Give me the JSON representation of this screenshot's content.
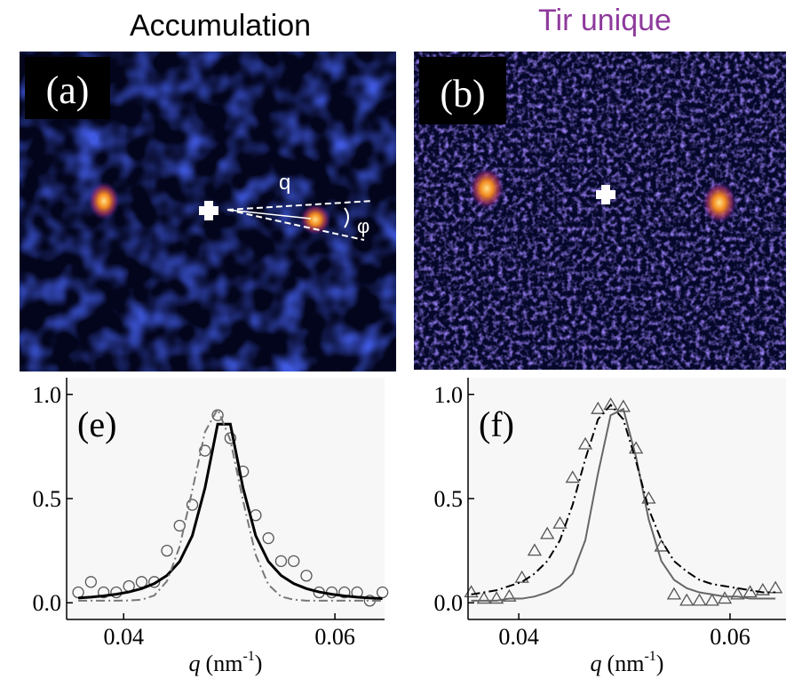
{
  "headers": [
    "Accumulation",
    "Tir unique"
  ],
  "images": [
    {
      "label": "(a)",
      "annotations": [
        "q",
        "φ"
      ]
    },
    {
      "label": "(b)"
    }
  ],
  "chart_data": [
    {
      "type": "line",
      "panel_label": "(e)",
      "x_label": {
        "symbol": "q",
        "unit": "(nm",
        "exponent": "-1",
        "close": ")"
      },
      "x": [
        0.0357,
        0.0369,
        0.0381,
        0.0393,
        0.0405,
        0.0417,
        0.0429,
        0.0441,
        0.0453,
        0.0465,
        0.0477,
        0.0489,
        0.0501,
        0.0513,
        0.0525,
        0.0537,
        0.0549,
        0.0561,
        0.0573,
        0.0585,
        0.0597,
        0.0609,
        0.0621,
        0.0633,
        0.0645
      ],
      "series": [
        {
          "style": "circles",
          "color": "#555555",
          "values": [
            0.05,
            0.1,
            0.05,
            0.05,
            0.08,
            0.1,
            0.1,
            0.25,
            0.37,
            0.47,
            0.73,
            0.9,
            0.79,
            0.63,
            0.42,
            0.31,
            0.2,
            0.2,
            0.13,
            0.05,
            0.05,
            0.05,
            0.05,
            0.01,
            0.05
          ]
        },
        {
          "style": "solid",
          "color": "#000000",
          "values": [
            0.023,
            0.027,
            0.033,
            0.041,
            0.052,
            0.068,
            0.092,
            0.131,
            0.198,
            0.322,
            0.551,
            0.857,
            0.857,
            0.551,
            0.322,
            0.198,
            0.131,
            0.092,
            0.068,
            0.052,
            0.041,
            0.033,
            0.027,
            0.023,
            0.02
          ]
        },
        {
          "style": "dashdot",
          "color": "#777777",
          "values": [
            0.01,
            0.01,
            0.01,
            0.01,
            0.011,
            0.015,
            0.035,
            0.104,
            0.27,
            0.54,
            0.82,
            0.93,
            0.78,
            0.49,
            0.23,
            0.087,
            0.03,
            0.015,
            0.01,
            0.01,
            0.01,
            0.01,
            0.01,
            0.01,
            0.01
          ]
        }
      ],
      "xlim": [
        0.0346,
        0.0647
      ],
      "ylim": [
        -0.08,
        1.08
      ],
      "xticks": [
        0.04,
        0.06
      ],
      "yticks": [
        {
          "value": 0,
          "label": "0.0"
        },
        {
          "value": 0.5,
          "label": "0.5"
        },
        {
          "value": 1,
          "label": "1.0"
        }
      ]
    },
    {
      "type": "line",
      "panel_label": "(f)",
      "x_label": {
        "symbol": "q",
        "unit": "(nm",
        "exponent": "-1",
        "close": ")"
      },
      "x": [
        0.0355,
        0.0367,
        0.0379,
        0.0391,
        0.0403,
        0.0415,
        0.0427,
        0.0439,
        0.0451,
        0.0463,
        0.0475,
        0.0487,
        0.0499,
        0.0511,
        0.0523,
        0.0535,
        0.0547,
        0.0559,
        0.0571,
        0.0583,
        0.0595,
        0.0607,
        0.0619,
        0.0631,
        0.0643
      ],
      "series": [
        {
          "style": "triangles",
          "color": "#555555",
          "values": [
            0.05,
            0.02,
            0.02,
            0.03,
            0.12,
            0.25,
            0.33,
            0.38,
            0.6,
            0.76,
            0.93,
            0.95,
            0.94,
            0.74,
            0.5,
            0.27,
            0.04,
            0.01,
            0.01,
            0.01,
            0.02,
            0.04,
            0.05,
            0.06,
            0.07
          ]
        },
        {
          "style": "solid",
          "color": "#666666",
          "values": [
            0.01,
            0.01,
            0.01,
            0.02,
            0.02,
            0.03,
            0.05,
            0.08,
            0.14,
            0.3,
            0.62,
            0.9,
            0.93,
            0.7,
            0.4,
            0.2,
            0.11,
            0.07,
            0.05,
            0.04,
            0.03,
            0.03,
            0.02,
            0.02,
            0.02
          ]
        },
        {
          "style": "dashdot",
          "color": "#000000",
          "values": [
            0.04,
            0.05,
            0.06,
            0.08,
            0.1,
            0.14,
            0.2,
            0.3,
            0.47,
            0.69,
            0.88,
            0.95,
            0.88,
            0.68,
            0.45,
            0.3,
            0.2,
            0.15,
            0.11,
            0.09,
            0.08,
            0.07,
            0.06,
            0.05,
            0.05
          ]
        }
      ],
      "xlim": [
        0.0352,
        0.0653
      ],
      "ylim": [
        -0.08,
        1.08
      ],
      "xticks": [
        0.04,
        0.06
      ],
      "yticks": [
        {
          "value": 0,
          "label": "0.0"
        },
        {
          "value": 0.5,
          "label": "0.5"
        },
        {
          "value": 1,
          "label": "1.0"
        }
      ]
    }
  ]
}
